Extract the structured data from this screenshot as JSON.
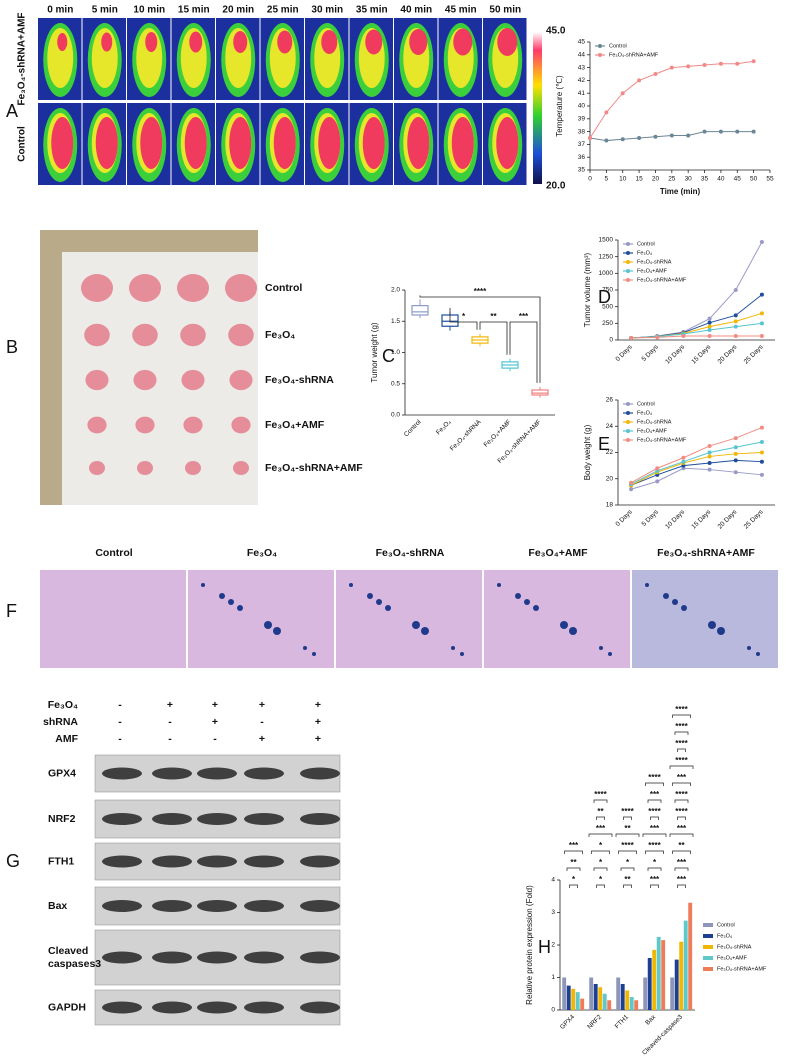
{
  "panel_labels": [
    "A",
    "B",
    "C",
    "D",
    "E",
    "F",
    "G",
    "H"
  ],
  "thermal": {
    "times": [
      "0 min",
      "5 min",
      "10 min",
      "15 min",
      "20 min",
      "25 min",
      "30 min",
      "35 min",
      "40 min",
      "45 min",
      "50 min"
    ],
    "rows": [
      "Fe₃O₄-shRNA+AMF",
      "Control"
    ],
    "colorbar": {
      "max": "45.0",
      "min": "20.0"
    }
  },
  "tumor_photo": {
    "groups": [
      "Control",
      "Fe₃O₄",
      "Fe₃O₄-shRNA",
      "Fe₃O₄+AMF",
      "Fe₃O₄-shRNA+AMF"
    ]
  },
  "histology": {
    "groups": [
      "Control",
      "Fe₃O₄",
      "Fe₃O₄-shRNA",
      "Fe₃O₄+AMF",
      "Fe₃O₄-shRNA+AMF"
    ]
  },
  "western_blot": {
    "factors": [
      {
        "name": "Fe₃O₄",
        "signs": [
          "-",
          "+",
          "+",
          "+",
          "+"
        ]
      },
      {
        "name": "shRNA",
        "signs": [
          "-",
          "-",
          "+",
          "-",
          "+"
        ]
      },
      {
        "name": "AMF",
        "signs": [
          "-",
          "-",
          "-",
          "+",
          "+"
        ]
      }
    ],
    "proteins": [
      [
        "GPX4"
      ],
      [
        "NRF2"
      ],
      [
        "FTH1"
      ],
      [
        "Bax"
      ],
      [
        "Cleaved",
        "caspases3"
      ],
      [
        "GAPDH"
      ]
    ]
  },
  "chart_data": [
    {
      "type": "line",
      "x_label": "Time (min)",
      "y_label": "Temperature (℃)",
      "x": [
        0,
        5,
        10,
        15,
        20,
        25,
        30,
        35,
        40,
        45,
        50
      ],
      "xlim": [
        0,
        55
      ],
      "xticks": [
        0,
        5,
        10,
        15,
        20,
        25,
        30,
        35,
        40,
        45,
        50,
        55
      ],
      "ylim": [
        35,
        45
      ],
      "yticks": [
        35,
        36,
        37,
        38,
        39,
        40,
        41,
        42,
        43,
        44,
        45
      ],
      "legend": "upper left",
      "series": [
        {
          "name": "Control",
          "color": "#6b8796",
          "values": [
            37.5,
            37.3,
            37.4,
            37.5,
            37.6,
            37.7,
            37.7,
            38.0,
            38.0,
            38.0,
            38.0
          ]
        },
        {
          "name": "Fe₃O₄-shRNA+AMF",
          "color": "#f08a8a",
          "values": [
            37.5,
            39.5,
            41.0,
            42.0,
            42.5,
            43.0,
            43.1,
            43.2,
            43.3,
            43.3,
            43.5
          ]
        }
      ]
    },
    {
      "type": "box",
      "y_label": "Tumor weight (g)",
      "categories": [
        "Control",
        "Fe₃O₄",
        "Fe₃O₄-shRNA",
        "Fe₃O₄+AMF",
        "Fe₃O₄-shRNA+AMF"
      ],
      "colors": [
        "#8d9bc9",
        "#1f4e9c",
        "#f2b705",
        "#4fc6d0",
        "#f08080"
      ],
      "boxes": [
        {
          "min": 1.55,
          "q1": 1.6,
          "median": 1.65,
          "q3": 1.75,
          "max": 1.85
        },
        {
          "min": 1.35,
          "q1": 1.42,
          "median": 1.5,
          "q3": 1.6,
          "max": 1.65
        },
        {
          "min": 1.1,
          "q1": 1.15,
          "median": 1.2,
          "q3": 1.25,
          "max": 1.3
        },
        {
          "min": 0.7,
          "q1": 0.75,
          "median": 0.8,
          "q3": 0.85,
          "max": 0.9
        },
        {
          "min": 0.28,
          "q1": 0.32,
          "median": 0.35,
          "q3": 0.4,
          "max": 0.45
        }
      ],
      "ylim": [
        0,
        2.0
      ],
      "yticks": [
        {
          "value": 0,
          "label": "0.0"
        },
        {
          "value": 0.5,
          "label": "0.5"
        },
        {
          "value": 1,
          "label": "1.0"
        },
        {
          "value": 1.5,
          "label": "1.5"
        },
        {
          "value": 2,
          "label": "2.0"
        }
      ],
      "significance": [
        "****",
        "*",
        "**",
        "***"
      ]
    },
    {
      "type": "line",
      "y_label": "Tumor volume (mm³)",
      "categories": [
        "0 Days",
        "5 Days",
        "10 Days",
        "15 Days",
        "20 Days",
        "25 Days"
      ],
      "ylim": [
        0,
        1500
      ],
      "yticks": [
        0,
        250,
        500,
        750,
        1000,
        1250,
        1500
      ],
      "legend": "upper left",
      "series": [
        {
          "name": "Control",
          "color": "#9a9ac8",
          "values": [
            30,
            60,
            120,
            320,
            750,
            1470
          ]
        },
        {
          "name": "Fe₃O₄",
          "color": "#1f4e9c",
          "values": [
            30,
            55,
            110,
            260,
            370,
            680
          ]
        },
        {
          "name": "Fe₃O₄-shRNA",
          "color": "#f2b705",
          "values": [
            30,
            50,
            100,
            200,
            280,
            400
          ]
        },
        {
          "name": "Fe₃O₄+AMF",
          "color": "#56c5d0",
          "values": [
            30,
            50,
            90,
            150,
            200,
            250
          ]
        },
        {
          "name": "Fe₃O₄-shRNA+AMF",
          "color": "#f28b82",
          "values": [
            30,
            40,
            60,
            60,
            60,
            60
          ]
        }
      ]
    },
    {
      "type": "line",
      "y_label": "Body weight (g)",
      "categories": [
        "0 Days",
        "5 Days",
        "10 Days",
        "15 Days",
        "20 Days",
        "25 Days"
      ],
      "ylim": [
        18,
        26
      ],
      "yticks": [
        18,
        20,
        22,
        24,
        26
      ],
      "legend": "upper left",
      "series": [
        {
          "name": "Control",
          "color": "#9a9ac8",
          "values": [
            19.2,
            19.8,
            20.8,
            20.7,
            20.5,
            20.3
          ]
        },
        {
          "name": "Fe₃O₄",
          "color": "#1f4e9c",
          "values": [
            19.5,
            20.3,
            21.0,
            21.2,
            21.4,
            21.3
          ]
        },
        {
          "name": "Fe₃O₄-shRNA",
          "color": "#f2b705",
          "values": [
            19.5,
            20.5,
            21.2,
            21.7,
            21.9,
            22.0
          ]
        },
        {
          "name": "Fe₃O₄+AMF",
          "color": "#56c5d0",
          "values": [
            19.6,
            20.6,
            21.3,
            22.0,
            22.4,
            22.8
          ]
        },
        {
          "name": "Fe₃O₄-shRNA+AMF",
          "color": "#f28b82",
          "values": [
            19.7,
            20.8,
            21.6,
            22.5,
            23.1,
            23.9
          ]
        }
      ]
    },
    {
      "type": "grouped_bar",
      "y_label": "Relative protein expression (Fold)",
      "categories": [
        "GPX4",
        "NRF2",
        "FTH1",
        "Bax",
        "Cleaved-caspase3"
      ],
      "ylim": [
        0,
        4
      ],
      "yticks": [
        0,
        1,
        2,
        3,
        4
      ],
      "series": [
        {
          "name": "Control",
          "color": "#8d96b8",
          "values": [
            1.0,
            1.0,
            1.0,
            1.0,
            1.0
          ]
        },
        {
          "name": "Fe₃O₄",
          "color": "#1d3f8f",
          "values": [
            0.75,
            0.8,
            0.8,
            1.6,
            1.55
          ]
        },
        {
          "name": "Fe₃O₄-shRNA",
          "color": "#f2b705",
          "values": [
            0.65,
            0.7,
            0.6,
            1.85,
            2.1
          ]
        },
        {
          "name": "Fe₃O₄+AMF",
          "color": "#5fc8c8",
          "values": [
            0.55,
            0.5,
            0.4,
            2.25,
            2.75
          ]
        },
        {
          "name": "Fe₃O₄-shRNA+AMF",
          "color": "#ee7b5a",
          "values": [
            0.35,
            0.3,
            0.3,
            2.15,
            3.3
          ]
        }
      ],
      "annotations": [
        [
          "*",
          "**",
          "***"
        ],
        [
          "*",
          "*",
          "*",
          "***",
          "**",
          "****"
        ],
        [
          "**",
          "*",
          "****",
          "**",
          "****"
        ],
        [
          "***",
          "*",
          "****",
          "***",
          "****",
          "***",
          "****"
        ],
        [
          "***",
          "***",
          "**",
          "***",
          "****",
          "****",
          "***",
          "****",
          "****",
          "****",
          "****"
        ]
      ]
    }
  ]
}
